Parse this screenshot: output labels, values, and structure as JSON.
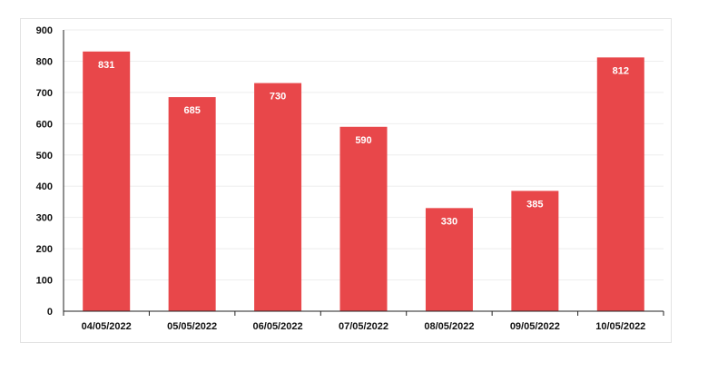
{
  "chart_data": {
    "type": "bar",
    "title": "",
    "xlabel": "",
    "ylabel": "",
    "categories": [
      "04/05/2022",
      "05/05/2022",
      "06/05/2022",
      "07/05/2022",
      "08/05/2022",
      "09/05/2022",
      "10/05/2022"
    ],
    "values": [
      831,
      685,
      730,
      590,
      330,
      385,
      812
    ],
    "ylim": [
      0,
      900
    ],
    "yticks": [
      0,
      100,
      200,
      300,
      400,
      500,
      600,
      700,
      800,
      900
    ],
    "grid": true,
    "legend": "none",
    "bar_color": "#e8474a",
    "data_label_color": "#ffffff"
  }
}
